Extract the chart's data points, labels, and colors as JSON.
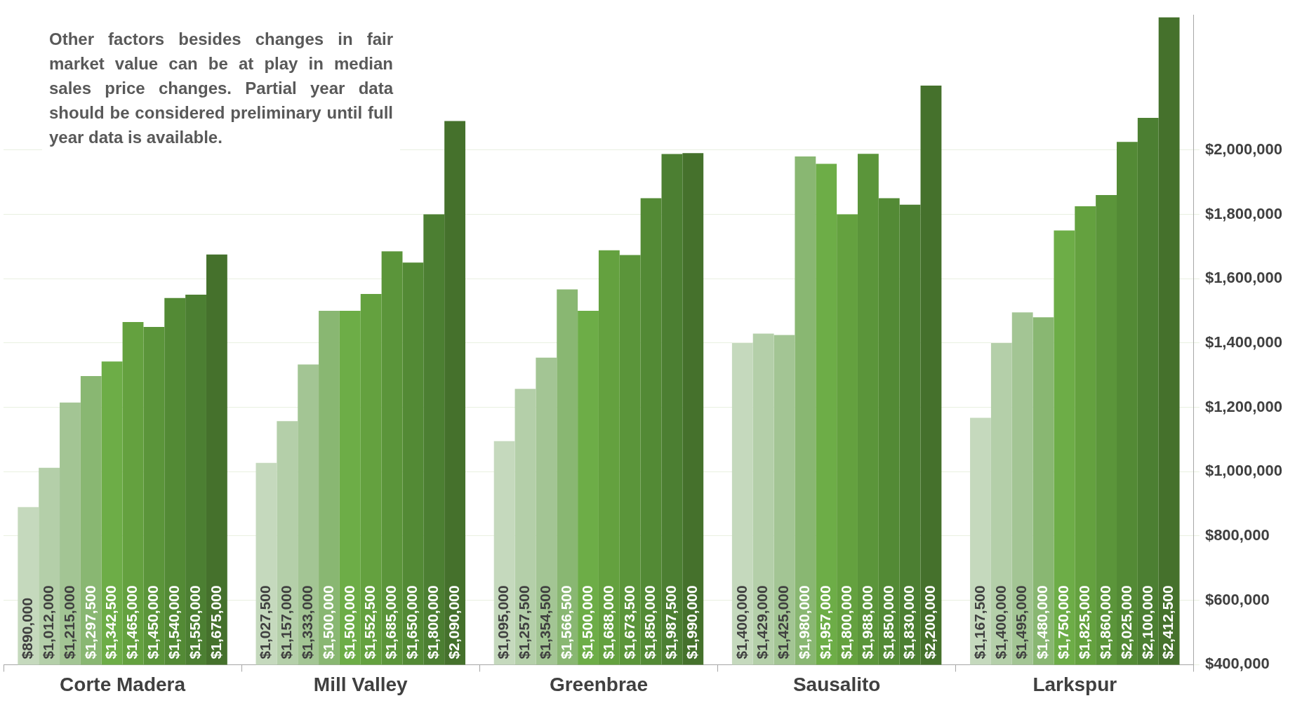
{
  "chart_data": {
    "type": "bar",
    "categories": [
      "Corte Madera",
      "Mill Valley",
      "Greenbrae",
      "Sausalito",
      "Larkspur"
    ],
    "series": [
      {
        "color": "#c5d9bd",
        "values": [
          890000,
          1027500,
          1095000,
          1400000,
          1167500
        ],
        "value_labels": [
          "$890,000",
          "$1,027,500",
          "$1,095,000",
          "$1,400,000",
          "$1,167,500"
        ]
      },
      {
        "color": "#b4cfa9",
        "values": [
          1012000,
          1157000,
          1257500,
          1429000,
          1400000
        ],
        "value_labels": [
          "$1,012,000",
          "$1,157,000",
          "$1,257,500",
          "$1,429,000",
          "$1,400,000"
        ]
      },
      {
        "color": "#a3c594",
        "values": [
          1215000,
          1333000,
          1354500,
          1425000,
          1495000
        ],
        "value_labels": [
          "$1,215,000",
          "$1,333,000",
          "$1,354,500",
          "$1,425,000",
          "$1,495,000"
        ]
      },
      {
        "color": "#89b772",
        "values": [
          1297500,
          1500000,
          1566500,
          1980000,
          1480000
        ],
        "value_labels": [
          "$1,297,500",
          "$1,500,000",
          "$1,566,500",
          "$1,980,000",
          "$1,480,000"
        ]
      },
      {
        "color": "#6dad47",
        "values": [
          1342500,
          1500000,
          1500000,
          1957000,
          1750000
        ],
        "value_labels": [
          "$1,342,500",
          "$1,500,000",
          "$1,500,000",
          "$1,957,000",
          "$1,750,000"
        ]
      },
      {
        "color": "#64a13f",
        "values": [
          1465000,
          1552500,
          1688000,
          1800000,
          1825000
        ],
        "value_labels": [
          "$1,465,000",
          "$1,552,500",
          "$1,688,000",
          "$1,800,000",
          "$1,825,000"
        ]
      },
      {
        "color": "#5b953a",
        "values": [
          1450000,
          1685000,
          1673500,
          1988000,
          1860000
        ],
        "value_labels": [
          "$1,450,000",
          "$1,685,000",
          "$1,673,500",
          "$1,988,000",
          "$1,860,000"
        ]
      },
      {
        "color": "#538a35",
        "values": [
          1540000,
          1650000,
          1850000,
          1850000,
          2025000
        ],
        "value_labels": [
          "$1,540,000",
          "$1,650,000",
          "$1,850,000",
          "$1,850,000",
          "$2,025,000"
        ]
      },
      {
        "color": "#4c7f32",
        "values": [
          1550000,
          1800000,
          1987500,
          1830000,
          2100000
        ],
        "value_labels": [
          "$1,550,000",
          "$1,800,000",
          "$1,987,500",
          "$1,830,000",
          "$2,100,000"
        ]
      },
      {
        "color": "#45712c",
        "values": [
          1675000,
          2090000,
          1990000,
          2200000,
          2412500
        ],
        "value_labels": [
          "$1,675,000",
          "$2,090,000",
          "$1,990,000",
          "$2,200,000",
          "$2,412,500"
        ]
      }
    ],
    "ylim": [
      400000,
      2420000
    ],
    "yticks": [
      {
        "value": 400000,
        "label": "$400,000"
      },
      {
        "value": 600000,
        "label": "$600,000"
      },
      {
        "value": 800000,
        "label": "$800,000"
      },
      {
        "value": 1000000,
        "label": "$1,000,000"
      },
      {
        "value": 1200000,
        "label": "$1,200,000"
      },
      {
        "value": 1400000,
        "label": "$1,400,000"
      },
      {
        "value": 1600000,
        "label": "$1,600,000"
      },
      {
        "value": 1800000,
        "label": "$1,800,000"
      },
      {
        "value": 2000000,
        "label": "$2,000,000"
      }
    ],
    "grid": "y",
    "legend": false,
    "annotations": [
      "Other factors besides changes in fair market value can be at play in median sales price changes. Partial year data should be considered preliminary until full year data is available."
    ]
  }
}
